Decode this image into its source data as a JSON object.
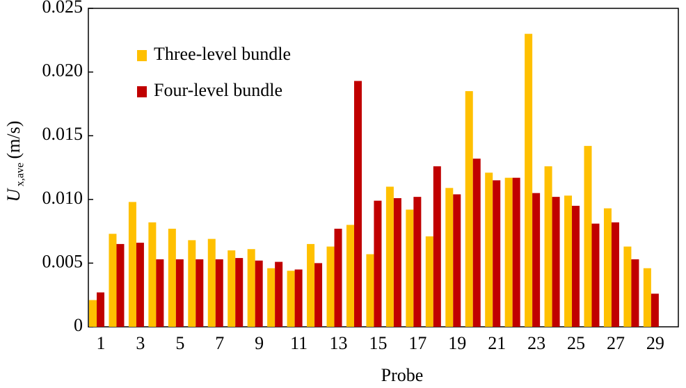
{
  "chart_data": {
    "type": "bar",
    "y_label": {
      "symbol": "U",
      "subscript": "x,ave",
      "unit": "(m/s)"
    },
    "x_label": "Probe",
    "categories": [
      "1",
      null,
      "3",
      null,
      "5",
      null,
      "7",
      null,
      "9",
      null,
      "11",
      null,
      "13",
      null,
      "15",
      null,
      "17",
      null,
      "19",
      null,
      "21",
      null,
      "23",
      null,
      "25",
      null,
      "27",
      null,
      "29"
    ],
    "series": [
      {
        "name": "Three-level bundle",
        "color": "#ffc000",
        "values": [
          0.0021,
          0.0073,
          0.0098,
          0.0082,
          0.0077,
          0.0068,
          0.0069,
          0.006,
          0.0061,
          0.0046,
          0.0044,
          0.0065,
          0.0063,
          0.008,
          0.0057,
          0.011,
          0.0092,
          0.0071,
          0.0109,
          0.0185,
          0.0121,
          0.0117,
          0.023,
          0.0126,
          0.0103,
          0.0142,
          0.0093,
          0.0063,
          0.0046
        ]
      },
      {
        "name": "Four-level bundle",
        "color": "#c00000",
        "values": [
          0.0027,
          0.0065,
          0.0066,
          0.0053,
          0.0053,
          0.0053,
          0.0053,
          0.0054,
          0.0052,
          0.0051,
          0.0045,
          0.005,
          0.0077,
          0.0193,
          0.0099,
          0.0101,
          0.0102,
          0.0126,
          0.0104,
          0.0132,
          0.0115,
          0.0117,
          0.0105,
          0.0102,
          0.0095,
          0.0081,
          0.0082,
          0.0053,
          0.0026
        ]
      }
    ],
    "ylim": [
      0,
      0.025
    ],
    "yticks": [
      0,
      0.005,
      {
        "value": 0.01,
        "label": "0.010"
      },
      0.015,
      {
        "value": 0.02,
        "label": "0.020"
      },
      0.025
    ],
    "grid": false,
    "legend": "upper-left"
  }
}
